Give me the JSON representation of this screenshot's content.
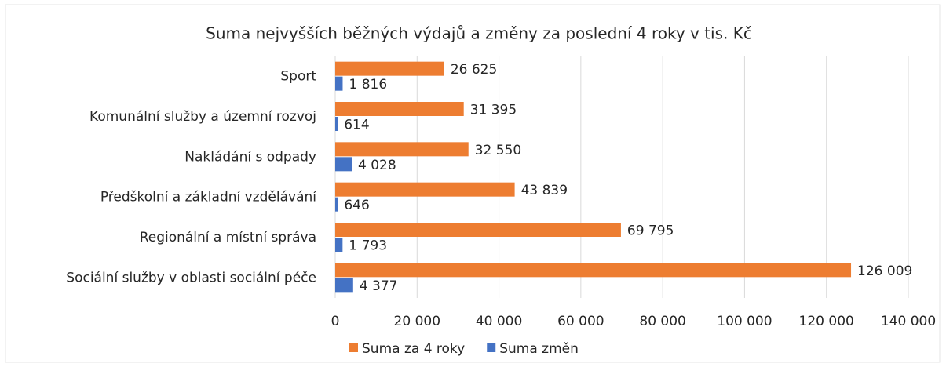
{
  "chart_data": {
    "type": "hbar",
    "title": "Suma nejvyšších běžných výdajů a změny za poslední 4 roky v tis. Kč",
    "categories": [
      "Sport",
      "Komunální služby a územní rozvoj",
      "Nakládání s odpady",
      "Předškolní a základní vzdělávání",
      "Regionální a místní správa",
      "Sociální služby v oblasti sociální péče"
    ],
    "series": [
      {
        "name": "Suma za 4 roky",
        "color": "#ed7d31",
        "values": [
          26625,
          31395,
          32550,
          43839,
          69795,
          126009
        ],
        "value_labels": [
          "26 625",
          "31 395",
          "32 550",
          "43 839",
          "69 795",
          "126 009"
        ]
      },
      {
        "name": "Suma změn",
        "color": "#4472c4",
        "values": [
          1816,
          614,
          4028,
          646,
          1793,
          4377
        ],
        "value_labels": [
          "1 816",
          "614",
          "4 028",
          "646",
          "1 793",
          "4 377"
        ]
      }
    ],
    "xlim": [
      0,
      140000
    ],
    "xticks": [
      0,
      {
        "value": 20000,
        "label": "20 000"
      },
      {
        "value": 40000,
        "label": "40 000"
      },
      {
        "value": 60000,
        "label": "60 000"
      },
      {
        "value": 80000,
        "label": "80 000"
      },
      {
        "value": 100000,
        "label": "100 000"
      },
      {
        "value": 120000,
        "label": "120 000"
      },
      {
        "value": 140000,
        "label": "140 000"
      }
    ],
    "grid": true,
    "legend": "bottom"
  }
}
